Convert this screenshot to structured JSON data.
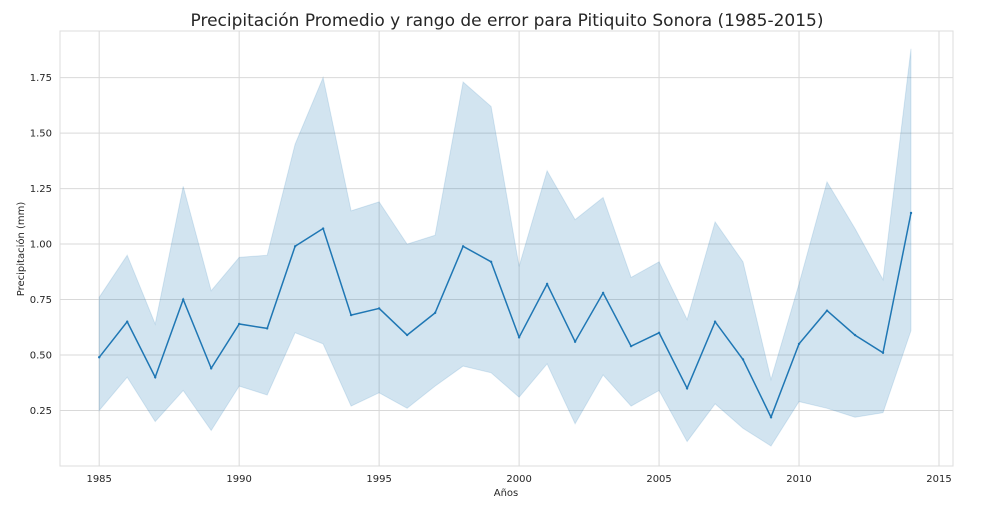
{
  "chart_data": {
    "type": "line",
    "title": "Precipitación Promedio y rango de error para Pitiquito Sonora (1985-2015)",
    "xlabel": "Años",
    "ylabel": "Precipitación (mm)",
    "xlim": [
      1983.6,
      2015.5
    ],
    "ylim": [
      0.0,
      1.96
    ],
    "x_ticks": [
      1985,
      1990,
      1995,
      2000,
      2005,
      2010,
      2015
    ],
    "y_ticks": [
      0.25,
      0.5,
      0.75,
      1.0,
      1.25,
      1.5,
      1.75
    ],
    "y_tick_labels": [
      "0.25",
      "0.50",
      "0.75",
      "1.00",
      "1.25",
      "1.50",
      "1.75"
    ],
    "grid": true,
    "colors": {
      "line": "#1f77b4",
      "band": "#1f77b4",
      "grid": "#d9d9d9"
    },
    "x": [
      1985,
      1986,
      1987,
      1988,
      1989,
      1990,
      1991,
      1992,
      1993,
      1994,
      1995,
      1996,
      1997,
      1998,
      1999,
      2000,
      2001,
      2002,
      2003,
      2004,
      2005,
      2006,
      2007,
      2008,
      2009,
      2010,
      2011,
      2012,
      2013,
      2014
    ],
    "series": [
      {
        "values": [
          0.49,
          0.65,
          0.4,
          0.75,
          0.44,
          0.64,
          0.62,
          0.99,
          1.07,
          0.68,
          0.71,
          0.59,
          0.69,
          0.99,
          0.92,
          0.58,
          0.82,
          0.56,
          0.78,
          0.54,
          0.6,
          0.35,
          0.65,
          0.48,
          0.22,
          0.55,
          0.7,
          0.59,
          0.51,
          1.14
        ],
        "lower": [
          0.25,
          0.4,
          0.2,
          0.34,
          0.16,
          0.36,
          0.32,
          0.6,
          0.55,
          0.27,
          0.33,
          0.26,
          0.36,
          0.45,
          0.42,
          0.31,
          0.46,
          0.19,
          0.41,
          0.27,
          0.34,
          0.11,
          0.28,
          0.17,
          0.09,
          0.29,
          0.26,
          0.22,
          0.24,
          0.61
        ],
        "upper": [
          0.76,
          0.95,
          0.64,
          1.26,
          0.79,
          0.94,
          0.95,
          1.45,
          1.75,
          1.15,
          1.19,
          1.0,
          1.04,
          1.73,
          1.62,
          0.9,
          1.33,
          1.11,
          1.21,
          0.85,
          0.92,
          0.66,
          1.1,
          0.92,
          0.39,
          0.82,
          1.28,
          1.07,
          0.84,
          1.88
        ]
      }
    ]
  }
}
